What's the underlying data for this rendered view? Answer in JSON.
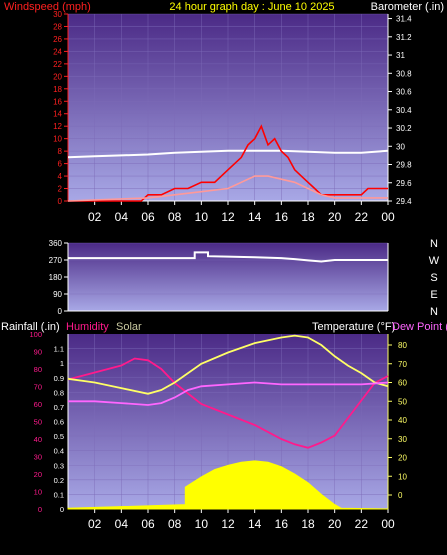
{
  "chart_data": [
    {
      "type": "line",
      "title": "24 hour graph day : June 10 2025",
      "ylabel": "Windspeed (mph)",
      "y2label": "Barometer (.in)",
      "ylim": [
        0,
        30
      ],
      "y2lim": [
        29.4,
        31.45
      ],
      "xlim": [
        0,
        24
      ],
      "y_ticks": [
        "0",
        "2",
        "4",
        "6",
        "8",
        "10",
        "12",
        "14",
        "16",
        "18",
        "20",
        "22",
        "24",
        "26",
        "28",
        "30"
      ],
      "y2_ticks": [
        "29.4",
        "29.6",
        "29.8",
        "30",
        "30.2",
        "30.4",
        "30.6",
        "30.8",
        "31",
        "31.2",
        "31.4"
      ],
      "x_ticks": [
        "02",
        "04",
        "06",
        "08",
        "10",
        "12",
        "14",
        "16",
        "18",
        "20",
        "22",
        "00"
      ],
      "series": [
        {
          "axis": "right",
          "color": "#ffffff",
          "x": [
            0,
            2,
            4,
            6,
            8,
            10,
            12,
            14,
            16,
            18,
            20,
            22,
            24
          ],
          "values": [
            29.88,
            29.89,
            29.9,
            29.91,
            29.93,
            29.94,
            29.95,
            29.95,
            29.95,
            29.94,
            29.93,
            29.93,
            29.95
          ]
        },
        {
          "axis": "left",
          "color": "#ff0000",
          "x": [
            0,
            5.5,
            6,
            7,
            8,
            9,
            10,
            11,
            12,
            13,
            13.5,
            14,
            14.5,
            15,
            15.5,
            16,
            16.5,
            17,
            17.5,
            18,
            18.5,
            19,
            20,
            21,
            22,
            22.5,
            23,
            24
          ],
          "values": [
            0,
            0,
            1,
            1,
            2,
            2,
            3,
            3,
            5,
            7,
            9,
            10,
            12,
            9,
            10,
            8,
            7,
            5,
            4,
            3,
            2,
            1,
            1,
            1,
            1,
            2,
            2,
            2
          ]
        },
        {
          "axis": "left",
          "color": "#ff9999",
          "x": [
            0,
            6,
            8,
            10,
            12,
            13,
            14,
            15,
            16,
            17,
            18,
            19,
            20,
            24
          ],
          "values": [
            0,
            0.5,
            1,
            1.5,
            2,
            3,
            4,
            4,
            3.5,
            3,
            2,
            1,
            0.5,
            0.5
          ]
        }
      ]
    },
    {
      "type": "line",
      "ylim": [
        0,
        360
      ],
      "xlim": [
        0,
        24
      ],
      "y_ticks": [
        "0",
        "90",
        "180",
        "270",
        "360"
      ],
      "compass_labels": [
        "N",
        "W",
        "S",
        "E",
        "N"
      ],
      "series": [
        {
          "color": "#ffffff",
          "x": [
            0,
            9.5,
            9.5,
            10.5,
            10.5,
            12,
            14,
            16,
            17,
            18,
            19,
            20,
            24
          ],
          "values": [
            280,
            280,
            310,
            310,
            290,
            288,
            285,
            280,
            275,
            268,
            262,
            270,
            270
          ]
        }
      ]
    },
    {
      "type": "line",
      "labels": [
        "Rainfall (.in)",
        "Humidity",
        "Solar"
      ],
      "temp_label": "Temperature (°F)",
      "dew_label": "Dew Point (",
      "ylim": [
        0,
        1.2
      ],
      "y_ticks": [
        "0",
        "0.1",
        "0.2",
        "0.3",
        "0.4",
        "0.5",
        "0.6",
        "0.7",
        "0.8",
        "0.9",
        "1",
        "1.1"
      ],
      "hum_ticks": [
        "0",
        "10",
        "20",
        "30",
        "40",
        "50",
        "60",
        "70",
        "80",
        "90",
        "100"
      ],
      "temp_ticks": [
        "0",
        "10",
        "20",
        "30",
        "40",
        "50",
        "60",
        "70",
        "80"
      ],
      "x_ticks": [
        "02",
        "04",
        "06",
        "08",
        "10",
        "12",
        "14",
        "16",
        "18",
        "20",
        "22",
        "00"
      ],
      "series": [
        {
          "name": "Humidity",
          "color": "#ff1a8c",
          "x": [
            0,
            2,
            4,
            5,
            6,
            7,
            8,
            9,
            10,
            12,
            14,
            16,
            17,
            18,
            19,
            20,
            21,
            22,
            23,
            24
          ],
          "values": [
            74,
            78,
            82,
            86,
            85,
            80,
            72,
            66,
            60,
            54,
            48,
            40,
            37,
            35,
            38,
            42,
            52,
            62,
            72,
            76
          ]
        },
        {
          "name": "Temperature",
          "color": "#ffff66",
          "x": [
            0,
            2,
            4,
            6,
            7,
            8,
            9,
            10,
            12,
            14,
            16,
            17,
            18,
            19,
            20,
            21,
            22,
            23,
            24
          ],
          "values": [
            62,
            60,
            57,
            54,
            56,
            60,
            65,
            70,
            76,
            81,
            84,
            85,
            84,
            80,
            74,
            69,
            65,
            60,
            58
          ]
        },
        {
          "name": "Dew Point",
          "color": "#ff66ff",
          "x": [
            0,
            2,
            4,
            6,
            7,
            8,
            9,
            10,
            12,
            14,
            16,
            18,
            20,
            22,
            24
          ],
          "values": [
            50,
            50,
            49,
            48,
            49,
            52,
            56,
            58,
            59,
            60,
            59,
            59,
            59,
            59,
            60
          ]
        },
        {
          "name": "Solar",
          "color": "#ffff00",
          "x": [
            0,
            8.8,
            8.8,
            10,
            11,
            12,
            13,
            14,
            15,
            16,
            17,
            18,
            19,
            20,
            20.5,
            24
          ],
          "values": [
            0.005,
            0.03,
            0.15,
            0.22,
            0.27,
            0.3,
            0.32,
            0.33,
            0.32,
            0.29,
            0.24,
            0.18,
            0.1,
            0.03,
            0.005,
            0
          ]
        }
      ]
    }
  ]
}
